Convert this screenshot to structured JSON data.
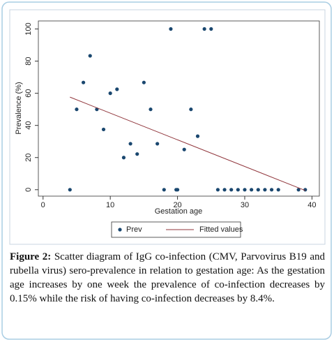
{
  "chart_data": {
    "type": "scatter",
    "x_label": "Gestation age",
    "y_label": "Prevalence (%)",
    "xlim": [
      -0.7,
      41.1
    ],
    "ylim": [
      -4,
      105
    ],
    "xticks": [
      0,
      10,
      20,
      30,
      40
    ],
    "yticks": [
      0,
      20,
      40,
      60,
      80,
      100
    ],
    "grid": false,
    "legend": "bottom",
    "series": [
      {
        "name": "Prev",
        "mode": "markers",
        "color": "#1a476f",
        "x": [
          4,
          5,
          6,
          7,
          8,
          9,
          10,
          11,
          12,
          13,
          14,
          15,
          16,
          17,
          18,
          19,
          19.8,
          20,
          21,
          22,
          23,
          24,
          25,
          26,
          27,
          28,
          29,
          30,
          31,
          32,
          33,
          34,
          35,
          38,
          39
        ],
        "values": [
          0,
          50,
          66.7,
          83.3,
          50,
          37.5,
          60,
          62.5,
          20,
          28.6,
          22.2,
          66.7,
          50,
          28.6,
          0,
          100,
          0,
          0,
          25,
          50,
          33.3,
          100,
          100,
          0,
          0,
          0,
          0,
          0,
          0,
          0,
          0,
          0,
          0,
          0,
          0
        ]
      },
      {
        "name": "Fitted values",
        "mode": "line",
        "color": "#90353b",
        "x": [
          4,
          39
        ],
        "values": [
          57.6,
          -0.5
        ]
      }
    ]
  },
  "caption": {
    "label": "Figure 2:",
    "text": "Scatter diagram of IgG co-infection (CMV, Parvovirus B19 and rubella virus) sero-prevalence in relation to gestation age: As the gestation age increases by one week the prevalence of co-infection decreases by 0.15% while the risk of having co-infection decreases by 8.4%."
  }
}
